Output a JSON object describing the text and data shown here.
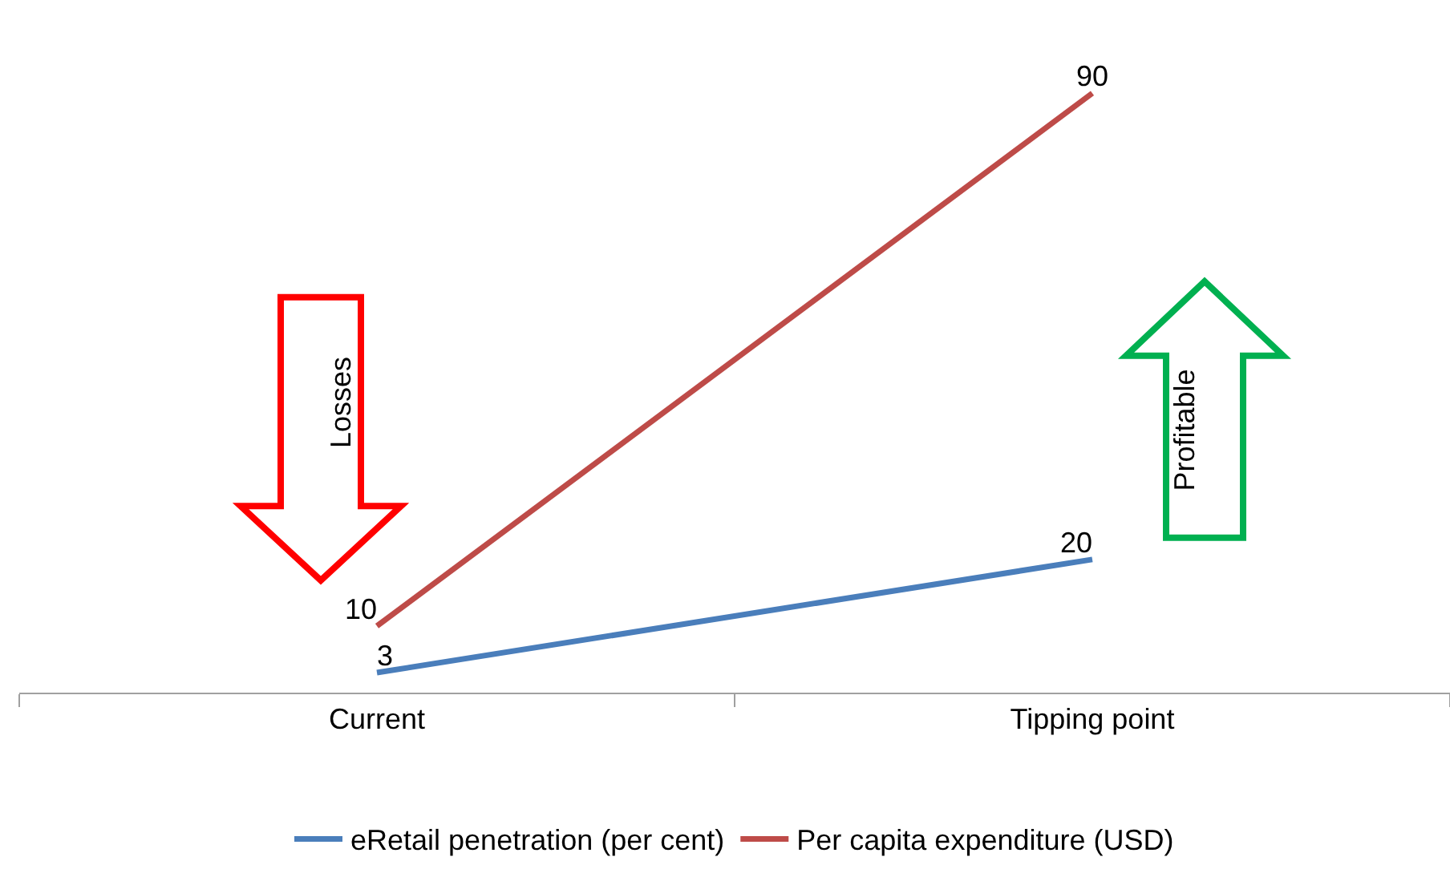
{
  "chart_data": {
    "type": "line",
    "categories": [
      "Current",
      "Tipping point"
    ],
    "series": [
      {
        "name": "eRetail penetration (per cent)",
        "color": "#4a7ebb",
        "values": [
          3,
          20
        ]
      },
      {
        "name": "Per capita expenditure (USD)",
        "color": "#be4b48",
        "values": [
          10,
          90
        ]
      }
    ],
    "ylim": [
      0,
      104
    ],
    "tick_labels": "x",
    "data_labels": true,
    "grid": false,
    "legend": "bottom",
    "marker": "none",
    "line_style": "solid",
    "annotations": [
      "Losses",
      "Profitable"
    ]
  }
}
